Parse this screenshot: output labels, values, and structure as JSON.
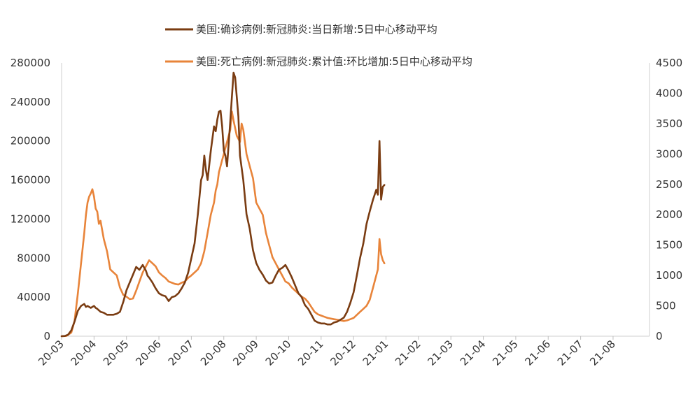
{
  "chart_data": {
    "type": "line",
    "title": "",
    "legend": {
      "placement": "top-center"
    },
    "x_tick_labels": [
      "20-03",
      "20-04",
      "20-05",
      "20-06",
      "20-07",
      "20-08",
      "20-09",
      "20-10",
      "20-11",
      "20-12",
      "21-01",
      "21-02",
      "21-03",
      "21-04",
      "21-05",
      "21-06",
      "21-07",
      "21-08"
    ],
    "y_left": {
      "min": 0,
      "max": 280000,
      "ticks": [
        0,
        40000,
        80000,
        120000,
        160000,
        200000,
        240000,
        280000
      ],
      "tick_labels": [
        "0",
        "40000",
        "80000",
        "120000",
        "160000",
        "200000",
        "240000",
        "280000"
      ]
    },
    "y_right": {
      "min": 0,
      "max": 4500,
      "ticks": [
        0,
        500,
        1000,
        1500,
        2000,
        2500,
        3000,
        3500,
        4000,
        4500
      ],
      "tick_labels": [
        "0",
        "500",
        "1000",
        "1500",
        "2000",
        "2500",
        "3000",
        "3500",
        "4000",
        "4500"
      ]
    },
    "series": [
      {
        "name": "美国:确诊病例:新冠肺炎:当日新增:5日中心移动平均",
        "axis": "left",
        "color": "#7a3c12",
        "points": [
          [
            0,
            0
          ],
          [
            0.1,
            200
          ],
          [
            0.2,
            1500
          ],
          [
            0.3,
            6000
          ],
          [
            0.4,
            15000
          ],
          [
            0.5,
            26000
          ],
          [
            0.6,
            31000
          ],
          [
            0.7,
            33000
          ],
          [
            0.75,
            30000
          ],
          [
            0.8,
            31000
          ],
          [
            0.9,
            29000
          ],
          [
            1.0,
            31000
          ],
          [
            1.05,
            29000
          ],
          [
            1.1,
            28000
          ],
          [
            1.2,
            25000
          ],
          [
            1.3,
            24000
          ],
          [
            1.4,
            22000
          ],
          [
            1.5,
            22000
          ],
          [
            1.6,
            22000
          ],
          [
            1.7,
            23000
          ],
          [
            1.8,
            25000
          ],
          [
            1.9,
            35000
          ],
          [
            2.0,
            47000
          ],
          [
            2.1,
            55000
          ],
          [
            2.2,
            63000
          ],
          [
            2.3,
            71000
          ],
          [
            2.4,
            68000
          ],
          [
            2.5,
            73000
          ],
          [
            2.6,
            67000
          ],
          [
            2.65,
            62000
          ],
          [
            2.7,
            60000
          ],
          [
            2.8,
            55000
          ],
          [
            2.9,
            49000
          ],
          [
            3.0,
            44000
          ],
          [
            3.1,
            42000
          ],
          [
            3.2,
            41000
          ],
          [
            3.3,
            36000
          ],
          [
            3.4,
            40000
          ],
          [
            3.5,
            41000
          ],
          [
            3.6,
            44000
          ],
          [
            3.7,
            49000
          ],
          [
            3.8,
            55000
          ],
          [
            3.9,
            65000
          ],
          [
            4.0,
            80000
          ],
          [
            4.1,
            95000
          ],
          [
            4.2,
            125000
          ],
          [
            4.3,
            160000
          ],
          [
            4.35,
            165000
          ],
          [
            4.4,
            185000
          ],
          [
            4.45,
            170000
          ],
          [
            4.5,
            160000
          ],
          [
            4.6,
            190000
          ],
          [
            4.7,
            215000
          ],
          [
            4.75,
            210000
          ],
          [
            4.8,
            222000
          ],
          [
            4.85,
            230000
          ],
          [
            4.9,
            231000
          ],
          [
            4.95,
            215000
          ],
          [
            5.0,
            190000
          ],
          [
            5.05,
            185000
          ],
          [
            5.1,
            174000
          ],
          [
            5.2,
            220000
          ],
          [
            5.25,
            245000
          ],
          [
            5.3,
            270000
          ],
          [
            5.35,
            265000
          ],
          [
            5.4,
            245000
          ],
          [
            5.45,
            225000
          ],
          [
            5.5,
            185000
          ],
          [
            5.6,
            160000
          ],
          [
            5.7,
            125000
          ],
          [
            5.8,
            110000
          ],
          [
            5.9,
            88000
          ],
          [
            6.0,
            75000
          ],
          [
            6.1,
            68000
          ],
          [
            6.2,
            63000
          ],
          [
            6.3,
            57000
          ],
          [
            6.4,
            54000
          ],
          [
            6.5,
            55000
          ],
          [
            6.6,
            62000
          ],
          [
            6.7,
            68000
          ],
          [
            6.8,
            70000
          ],
          [
            6.9,
            73000
          ],
          [
            7.0,
            67000
          ],
          [
            7.1,
            60000
          ],
          [
            7.2,
            52000
          ],
          [
            7.3,
            44000
          ],
          [
            7.4,
            40000
          ],
          [
            7.5,
            32000
          ],
          [
            7.6,
            28000
          ],
          [
            7.7,
            22000
          ],
          [
            7.8,
            16000
          ],
          [
            7.9,
            14000
          ],
          [
            8.0,
            13000
          ],
          [
            8.1,
            13000
          ],
          [
            8.2,
            12000
          ],
          [
            8.3,
            12000
          ],
          [
            8.4,
            14000
          ],
          [
            8.5,
            15000
          ],
          [
            8.6,
            17000
          ],
          [
            8.7,
            19000
          ],
          [
            8.8,
            25000
          ],
          [
            8.9,
            34000
          ],
          [
            9.0,
            45000
          ],
          [
            9.1,
            62000
          ],
          [
            9.2,
            80000
          ],
          [
            9.3,
            95000
          ],
          [
            9.4,
            115000
          ],
          [
            9.5,
            128000
          ],
          [
            9.6,
            140000
          ],
          [
            9.7,
            150000
          ],
          [
            9.75,
            145000
          ],
          [
            9.8,
            200000
          ],
          [
            9.85,
            140000
          ],
          [
            9.9,
            153000
          ],
          [
            9.95,
            155000
          ]
        ]
      },
      {
        "name": "美国:死亡病例:新冠肺炎:累计值:环比增加:5日中心移动平均",
        "axis": "right",
        "color": "#e8843a",
        "points": [
          [
            0,
            0
          ],
          [
            0.15,
            5
          ],
          [
            0.3,
            60
          ],
          [
            0.4,
            250
          ],
          [
            0.5,
            700
          ],
          [
            0.6,
            1200
          ],
          [
            0.7,
            1700
          ],
          [
            0.75,
            2000
          ],
          [
            0.8,
            2200
          ],
          [
            0.85,
            2300
          ],
          [
            0.9,
            2350
          ],
          [
            0.95,
            2420
          ],
          [
            1.0,
            2300
          ],
          [
            1.05,
            2100
          ],
          [
            1.1,
            2050
          ],
          [
            1.15,
            1850
          ],
          [
            1.2,
            1900
          ],
          [
            1.3,
            1600
          ],
          [
            1.4,
            1400
          ],
          [
            1.5,
            1100
          ],
          [
            1.6,
            1050
          ],
          [
            1.7,
            1000
          ],
          [
            1.8,
            800
          ],
          [
            1.9,
            680
          ],
          [
            2.0,
            650
          ],
          [
            2.1,
            610
          ],
          [
            2.2,
            620
          ],
          [
            2.3,
            750
          ],
          [
            2.4,
            900
          ],
          [
            2.5,
            1050
          ],
          [
            2.6,
            1150
          ],
          [
            2.7,
            1250
          ],
          [
            2.8,
            1200
          ],
          [
            2.9,
            1150
          ],
          [
            3.0,
            1050
          ],
          [
            3.1,
            1000
          ],
          [
            3.2,
            960
          ],
          [
            3.3,
            900
          ],
          [
            3.4,
            880
          ],
          [
            3.5,
            860
          ],
          [
            3.6,
            850
          ],
          [
            3.7,
            880
          ],
          [
            3.8,
            900
          ],
          [
            3.9,
            960
          ],
          [
            4.0,
            1000
          ],
          [
            4.1,
            1050
          ],
          [
            4.2,
            1100
          ],
          [
            4.3,
            1200
          ],
          [
            4.4,
            1400
          ],
          [
            4.5,
            1700
          ],
          [
            4.6,
            2000
          ],
          [
            4.7,
            2200
          ],
          [
            4.75,
            2400
          ],
          [
            4.8,
            2500
          ],
          [
            4.85,
            2700
          ],
          [
            4.9,
            2800
          ],
          [
            4.95,
            2900
          ],
          [
            5.0,
            3000
          ],
          [
            5.05,
            3100
          ],
          [
            5.1,
            3200
          ],
          [
            5.2,
            3400
          ],
          [
            5.25,
            3700
          ],
          [
            5.3,
            3550
          ],
          [
            5.4,
            3300
          ],
          [
            5.5,
            3200
          ],
          [
            5.55,
            3500
          ],
          [
            5.6,
            3400
          ],
          [
            5.7,
            3000
          ],
          [
            5.8,
            2800
          ],
          [
            5.9,
            2600
          ],
          [
            6.0,
            2200
          ],
          [
            6.1,
            2100
          ],
          [
            6.2,
            2000
          ],
          [
            6.3,
            1700
          ],
          [
            6.4,
            1500
          ],
          [
            6.5,
            1300
          ],
          [
            6.6,
            1200
          ],
          [
            6.7,
            1100
          ],
          [
            6.8,
            1000
          ],
          [
            6.9,
            900
          ],
          [
            7.0,
            870
          ],
          [
            7.1,
            800
          ],
          [
            7.2,
            750
          ],
          [
            7.3,
            700
          ],
          [
            7.4,
            650
          ],
          [
            7.5,
            620
          ],
          [
            7.6,
            560
          ],
          [
            7.7,
            480
          ],
          [
            7.8,
            400
          ],
          [
            7.9,
            360
          ],
          [
            8.0,
            340
          ],
          [
            8.1,
            320
          ],
          [
            8.2,
            300
          ],
          [
            8.3,
            290
          ],
          [
            8.4,
            280
          ],
          [
            8.5,
            270
          ],
          [
            8.6,
            260
          ],
          [
            8.7,
            250
          ],
          [
            8.8,
            260
          ],
          [
            8.9,
            280
          ],
          [
            9.0,
            300
          ],
          [
            9.1,
            350
          ],
          [
            9.2,
            400
          ],
          [
            9.3,
            450
          ],
          [
            9.4,
            500
          ],
          [
            9.5,
            600
          ],
          [
            9.6,
            800
          ],
          [
            9.7,
            1000
          ],
          [
            9.75,
            1100
          ],
          [
            9.8,
            1600
          ],
          [
            9.85,
            1350
          ],
          [
            9.9,
            1250
          ],
          [
            9.95,
            1200
          ]
        ]
      }
    ]
  }
}
